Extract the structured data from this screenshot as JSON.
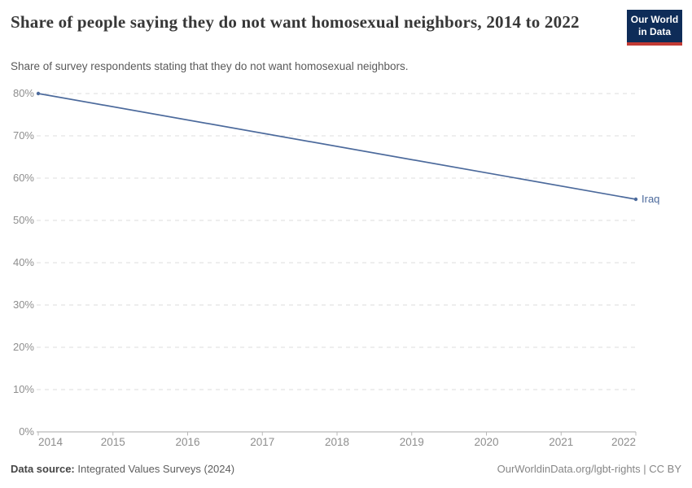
{
  "header": {
    "title": "Share of people saying they do not want homosexual neighbors, 2014 to 2022",
    "subtitle": "Share of survey respondents stating that they do not want homosexual neighbors."
  },
  "logo": {
    "line1": "Our World",
    "line2": "in Data",
    "bg_color": "#0e2c58",
    "bar_color": "#c23a34"
  },
  "chart_data": {
    "type": "line",
    "title": "Share of people saying they do not want homosexual neighbors, 2014 to 2022",
    "subtitle": "Share of survey respondents stating that they do not want homosexual neighbors.",
    "xlabel": "",
    "ylabel": "",
    "xlim": [
      2014,
      2022
    ],
    "ylim": [
      0,
      80
    ],
    "x_ticks": [
      2014,
      2015,
      2016,
      2017,
      2018,
      2019,
      2020,
      2021,
      2022
    ],
    "y_ticks": [
      0,
      10,
      20,
      30,
      40,
      50,
      60,
      70,
      80
    ],
    "y_tick_suffix": "%",
    "grid": "horizontal-dashed",
    "legend_position": "end-of-line-label",
    "series": [
      {
        "name": "Iraq",
        "color": "#4C6A9C",
        "x": [
          2014,
          2022
        ],
        "values": [
          80,
          55
        ]
      }
    ]
  },
  "footer": {
    "source_label": "Data source:",
    "source_value": "Integrated Values Surveys (2024)",
    "rights": "OurWorldinData.org/lgbt-rights | CC BY"
  },
  "colors": {
    "grid": "#dcdcdc",
    "axis": "#a8a8a8",
    "tick": "#b8b8b8",
    "tick_label": "#8e8e8e",
    "line": "#4C6A9C"
  }
}
